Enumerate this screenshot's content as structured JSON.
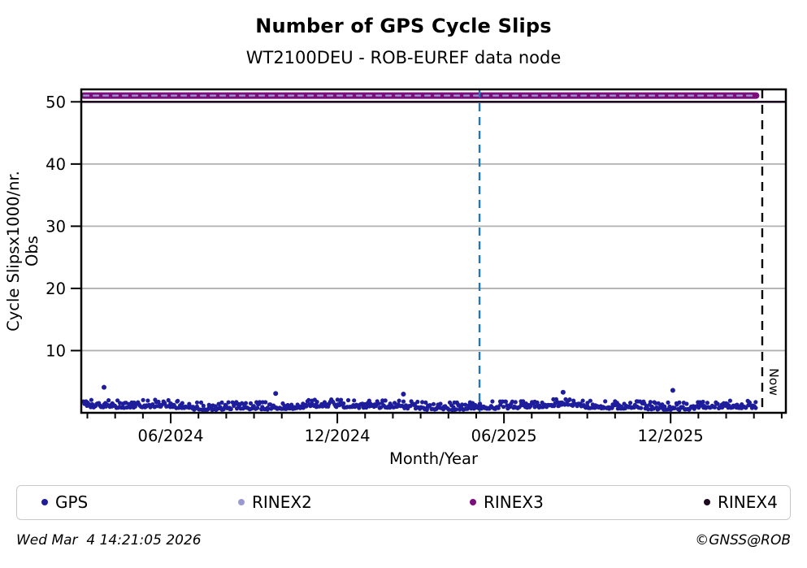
{
  "header": {
    "title": "Number of GPS Cycle Slips",
    "subtitle": "WT2100DEU - ROB-EUREF data node"
  },
  "footer": {
    "timestamp": "Wed Mar  4 14:21:05 2026",
    "copyright": "©GNSS@ROB"
  },
  "chart_data": {
    "type": "scatter",
    "title": "Number of GPS Cycle Slips",
    "subtitle": "WT2100DEU - ROB-EUREF data node",
    "xlabel": "Month/Year",
    "ylabel": "Cycle Slipsx1000/nr. Obs",
    "grid": true,
    "x_axis": {
      "unit": "months since start (mid-March 2024)",
      "range": [
        0,
        25.37
      ],
      "major_ticks": [
        {
          "pos": 3.22,
          "label": "06/2024"
        },
        {
          "pos": 9.22,
          "label": "12/2024"
        },
        {
          "pos": 15.22,
          "label": "06/2025"
        },
        {
          "pos": 21.22,
          "label": "12/2025"
        }
      ],
      "minor_tick_start": 0.22,
      "minor_tick_step": 1,
      "minor_tick_count": 26
    },
    "y_axis": {
      "range": [
        0,
        52
      ],
      "ticks": [
        10,
        20,
        30,
        40,
        50
      ],
      "grid_color": "#b0b0b0"
    },
    "series": [
      {
        "name": "GPS",
        "type": "scatter",
        "color": "#1e1e9c",
        "marker_radius": 2.6,
        "x_start": 0.09,
        "x_end": 24.3,
        "points": 680,
        "seed": 20260304,
        "y_base": 0.45,
        "y_wave_amp": 0.22,
        "y_noise_scale": 0.32,
        "y_cap": 2.7,
        "y_typical_range": [
          0.3,
          2.6
        ],
        "outliers": [
          [
            0.82,
            4.1
          ],
          [
            7.0,
            3.1
          ],
          [
            11.6,
            3.0
          ],
          [
            17.35,
            3.3
          ],
          [
            21.3,
            3.6
          ]
        ]
      },
      {
        "name": "RINEX2",
        "type": "line",
        "color": "#9a9ad2",
        "y_value": 51,
        "x_start": 0.09,
        "x_end": 24.3,
        "stroke_width": 2.2,
        "dash": "6 6"
      },
      {
        "name": "RINEX3",
        "type": "line",
        "color": "#7c0d7c",
        "y_value": 51,
        "x_start": 0.09,
        "x_end": 24.3,
        "stroke_width": 8,
        "dash": ""
      },
      {
        "name": "RINEX4",
        "type": "line",
        "color": "#1c0b20",
        "y_value": 50,
        "x_start": 0,
        "x_end": 25.37,
        "stroke_width": 2.6,
        "dash": ""
      }
    ],
    "annotations": [
      {
        "type": "vline",
        "x": 14.34,
        "color": "#1f77b4",
        "dash": "10 7",
        "stroke_width": 2.4,
        "label": ""
      },
      {
        "type": "vline",
        "x": 24.52,
        "color": "#000000",
        "dash": "11 8",
        "stroke_width": 2.4,
        "label": "Now"
      }
    ],
    "legend": {
      "position": "bottom",
      "items": [
        {
          "label": "GPS",
          "color": "#1e1e9c"
        },
        {
          "label": "RINEX2",
          "color": "#9a9ad2"
        },
        {
          "label": "RINEX3",
          "color": "#7c0d7c"
        },
        {
          "label": "RINEX4",
          "color": "#1c0b20"
        }
      ]
    },
    "now_label": "Now"
  }
}
